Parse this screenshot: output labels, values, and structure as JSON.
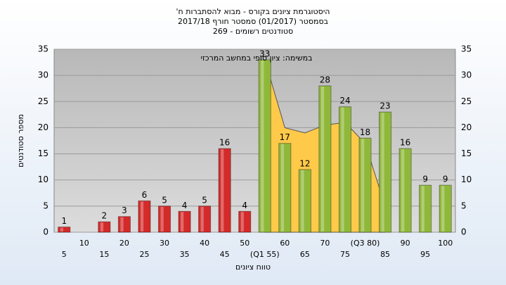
{
  "chart_data": {
    "type": "bar",
    "title": "היסטוגרמת ציונים בקורס - מבוא להסתברות ח'",
    "subtitle": "בסמסטר (01/2017) סמסטר חורף 2017/18",
    "subtitle2": "סטודנטים רשומים - 269",
    "annotation": "במשימה: ציון סופי במחשב המרכזי",
    "x_label": "טווח ציונים",
    "y_label": "מספר סטודנטים",
    "categories": [
      "5",
      "10",
      "15",
      "20",
      "25",
      "30",
      "35",
      "40",
      "45",
      "50",
      "(Q1 55)",
      "60",
      "65",
      "70",
      "75",
      "(Q3 80)",
      "85",
      "90",
      "95",
      "100"
    ],
    "values": [
      1,
      0,
      2,
      3,
      6,
      5,
      4,
      5,
      16,
      4,
      33,
      17,
      12,
      28,
      24,
      18,
      23,
      16,
      9,
      9
    ],
    "colors": [
      "#d42a2a",
      "#d42a2a",
      "#d42a2a",
      "#d42a2a",
      "#d42a2a",
      "#d42a2a",
      "#d42a2a",
      "#d42a2a",
      "#d42a2a",
      "#d42a2a",
      "#8fb83a",
      "#8fb83a",
      "#8fb83a",
      "#8fb83a",
      "#8fb83a",
      "#8fb83a",
      "#8fb83a",
      "#8fb83a",
      "#8fb83a",
      "#8fb83a"
    ],
    "area_values": [
      null,
      null,
      null,
      null,
      null,
      null,
      null,
      null,
      null,
      null,
      33,
      20,
      19,
      20.5,
      21,
      17,
      5,
      null,
      null,
      null
    ],
    "area_color": "#ffc94a",
    "ylim": [
      0,
      35
    ],
    "yticks": [
      0,
      5,
      10,
      15,
      20,
      25,
      30,
      35
    ],
    "grid": true
  }
}
